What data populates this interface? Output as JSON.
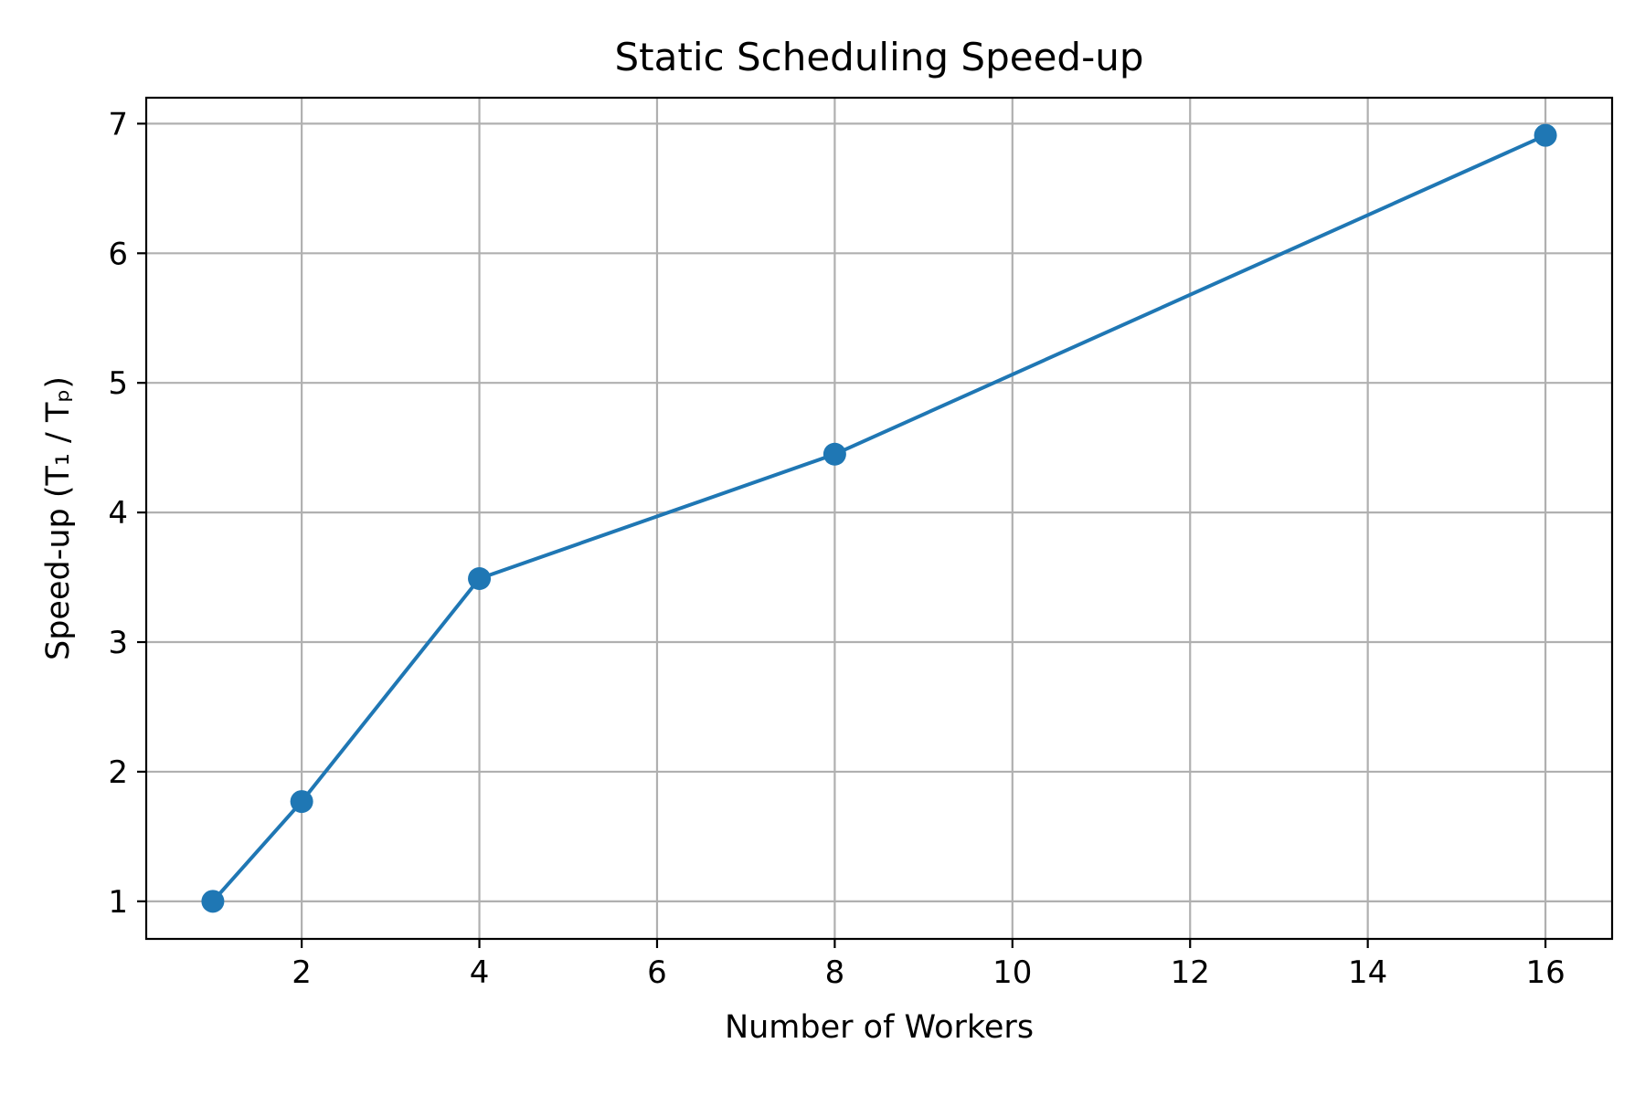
{
  "chart_data": {
    "type": "line",
    "title": "Static Scheduling Speed-up",
    "xlabel": "Number of Workers",
    "ylabel": "Speed-up (T₁ / Tₚ)",
    "x": [
      1,
      2,
      4,
      8,
      16
    ],
    "series": [
      {
        "values": [
          1.0,
          1.77,
          3.49,
          4.45,
          6.91
        ],
        "color": "#1f77b4",
        "marker": "circle"
      }
    ],
    "xlim": [
      0.25,
      16.75
    ],
    "ylim": [
      0.71,
      7.2
    ],
    "xticks": [
      2,
      4,
      6,
      8,
      10,
      12,
      14,
      16
    ],
    "yticks": [
      1,
      2,
      3,
      4,
      5,
      6,
      7
    ],
    "grid": true,
    "legend": "none"
  }
}
